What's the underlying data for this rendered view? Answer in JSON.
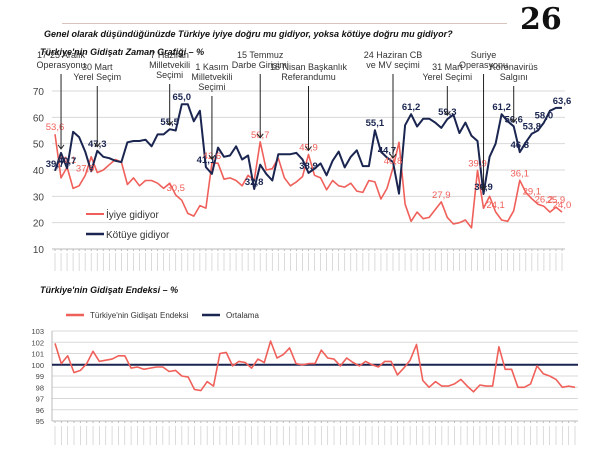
{
  "page": {
    "page_number": "26",
    "question": "Genel olarak düşündüğünüzde Türkiye iyiye doğru mu gidiyor, yoksa kötüye doğru mu gidiyor?",
    "chart1_title": "Türkiye'nin Gidişatı Zaman Grafiği – %",
    "chart2_title": "Türkiye'nin Gidişatı Endeksi – %"
  },
  "colors": {
    "good": "#f0605a",
    "bad": "#1a2550",
    "grid": "#d9d9d9"
  },
  "chart_data": [
    {
      "type": "line",
      "title": "Türkiye'nin Gidişatı Zaman Grafiği – %",
      "ylim": [
        10,
        70
      ],
      "yticks": [
        10,
        20,
        30,
        40,
        50,
        60,
        70
      ],
      "grid": true,
      "legend_position": "bottom-left",
      "x_range": [
        "Aralık'13",
        "Ekim'20"
      ],
      "series": [
        {
          "name": "İyiye gidiyor",
          "values": [
            53.6,
            37,
            41.1,
            33,
            34,
            37.9,
            45,
            39,
            40,
            42,
            44,
            43,
            34.5,
            37,
            34,
            36,
            36,
            35,
            33,
            35,
            30.5,
            28.5,
            23.5,
            22.5,
            26.5,
            25.5,
            42.6,
            42.6,
            36.5,
            37,
            36,
            34,
            38,
            36,
            50.7,
            40,
            40.5,
            44.5,
            37,
            34,
            35.5,
            37.5,
            45.9,
            38,
            37,
            32.5,
            36,
            34,
            33.5,
            35,
            32,
            31.5,
            36,
            35.5,
            29,
            33,
            40.8,
            50.5,
            27,
            20.5,
            24,
            21.5,
            22,
            25,
            27.9,
            22,
            19.5,
            20,
            21,
            18,
            39.9,
            25.5,
            30,
            24.1,
            21,
            20.5,
            24.5,
            36.1,
            31.5,
            29.1,
            27,
            26.2,
            24,
            25.9,
            24.0
          ]
        },
        {
          "name": "Kötüye gidiyor",
          "values": [
            39.7,
            46.5,
            40.7,
            54.5,
            52.5,
            47,
            39.5,
            47.3,
            45,
            44.5,
            43.5,
            43,
            50.5,
            51,
            51,
            51.5,
            49,
            53.5,
            53.5,
            55.5,
            55,
            65,
            65,
            58.5,
            62.5,
            41.1,
            38.5,
            48.5,
            45,
            45.5,
            49,
            44,
            45.5,
            32.8,
            42,
            38.5,
            36,
            46,
            46,
            46,
            46.5,
            44,
            38.9,
            40.5,
            42.5,
            38,
            43.5,
            47,
            41,
            45,
            47.5,
            41.5,
            41.5,
            55.1,
            47,
            44.7,
            43,
            31,
            57,
            61.2,
            56.5,
            59.5,
            59.5,
            58,
            56,
            59.3,
            61,
            54,
            58,
            53,
            51,
            30.9,
            45,
            50,
            61.2,
            58.5,
            56.6,
            46.8,
            50.5,
            53.8,
            55,
            58.0,
            62.5,
            63.6,
            63.6
          ]
        }
      ],
      "data_labels": {
        "good": [
          {
            "i": 0,
            "v": "53,6"
          },
          {
            "i": 2,
            "v": "41,1"
          },
          {
            "i": 5,
            "v": "37,9"
          },
          {
            "i": 20,
            "v": "30,5"
          },
          {
            "i": 26,
            "v": "42,6"
          },
          {
            "i": 34,
            "v": "50,7"
          },
          {
            "i": 42,
            "v": "45,9"
          },
          {
            "i": 56,
            "v": "40,8"
          },
          {
            "i": 64,
            "v": "27,9"
          },
          {
            "i": 70,
            "v": "39,9"
          },
          {
            "i": 73,
            "v": "24,1"
          },
          {
            "i": 77,
            "v": "36,1"
          },
          {
            "i": 79,
            "v": "29,1"
          },
          {
            "i": 81,
            "v": "26,2"
          },
          {
            "i": 83,
            "v": "25,9"
          },
          {
            "i": 84,
            "v": "24,0"
          }
        ],
        "bad": [
          {
            "i": 0,
            "v": "39,7"
          },
          {
            "i": 2,
            "v": "40,7"
          },
          {
            "i": 7,
            "v": "47,3"
          },
          {
            "i": 19,
            "v": "55,5"
          },
          {
            "i": 21,
            "v": "65,0"
          },
          {
            "i": 25,
            "v": "41,1"
          },
          {
            "i": 33,
            "v": "32,8"
          },
          {
            "i": 42,
            "v": "38,9"
          },
          {
            "i": 53,
            "v": "55,1"
          },
          {
            "i": 55,
            "v": "44,7"
          },
          {
            "i": 59,
            "v": "61,2"
          },
          {
            "i": 65,
            "v": "59,3"
          },
          {
            "i": 71,
            "v": "30,9"
          },
          {
            "i": 74,
            "v": "61,2"
          },
          {
            "i": 76,
            "v": "56,6"
          },
          {
            "i": 77,
            "v": "46,8"
          },
          {
            "i": 79,
            "v": "53,8"
          },
          {
            "i": 81,
            "v": "58,0"
          },
          {
            "i": 84,
            "v": "63,6"
          }
        ]
      },
      "annotations": [
        {
          "text": [
            "17-25 Aralık",
            "Operasyonu"
          ],
          "i": 1
        },
        {
          "text": [
            "30 Mart",
            "Yerel Seçim"
          ],
          "i": 7
        },
        {
          "text": [
            "7 Haziran",
            "Milletvekili",
            "Seçimi"
          ],
          "i": 19
        },
        {
          "text": [
            "1 Kasım",
            "Milletvekili",
            "Seçimi"
          ],
          "i": 26
        },
        {
          "text": [
            "15 Temmuz",
            "Darbe Girişimi"
          ],
          "i": 34
        },
        {
          "text": [
            "16 Nisan Başkanlık",
            "Referandumu"
          ],
          "i": 42
        },
        {
          "text": [
            "24 Haziran CB",
            "ve MV seçimi"
          ],
          "i": 56
        },
        {
          "text": [
            "31 Mart",
            "Yerel Seçimi"
          ],
          "i": 65
        },
        {
          "text": [
            "Suriye",
            "Operasyonu"
          ],
          "i": 71
        },
        {
          "text": [
            "Koronavirüs",
            "Salgını"
          ],
          "i": 76
        }
      ]
    },
    {
      "type": "line",
      "title": "Türkiye'nin Gidişatı Endeksi – %",
      "ylim": [
        95,
        103
      ],
      "yticks": [
        95,
        96,
        97,
        98,
        99,
        100,
        101,
        102,
        103
      ],
      "grid": true,
      "legend_position": "top",
      "x_range": [
        "Aralık'13",
        "Ekim'20"
      ],
      "series": [
        {
          "name": "Türkiye'nin Gidişatı Endeksi",
          "values": [
            101.9,
            100.1,
            100.8,
            99.3,
            99.5,
            100.1,
            101.2,
            100.3,
            100.4,
            100.5,
            100.8,
            100.8,
            99.7,
            99.8,
            99.6,
            99.7,
            99.8,
            99.8,
            99.4,
            99.5,
            99.0,
            98.9,
            97.8,
            97.7,
            98.5,
            98.1,
            101.0,
            101.1,
            99.9,
            100.3,
            100.2,
            99.7,
            100.5,
            100.2,
            102.1,
            100.6,
            100.9,
            101.5,
            100.1,
            100.0,
            100.1,
            100.1,
            101.3,
            100.6,
            100.5,
            99.9,
            100.6,
            100.2,
            99.9,
            100.3,
            100.0,
            99.8,
            100.3,
            100.3,
            99.1,
            99.7,
            100.4,
            101.8,
            98.6,
            98.0,
            98.5,
            98.1,
            98.1,
            98.3,
            98.7,
            98.1,
            97.6,
            98.2,
            98.1,
            98.1,
            101.6,
            99.6,
            99.6,
            98.0,
            98.0,
            98.3,
            99.9,
            99.2,
            99.0,
            98.7,
            98.0,
            98.1,
            98.0
          ]
        },
        {
          "name": "Ortalama",
          "values": [
            100
          ]
        }
      ]
    }
  ],
  "labels": {
    "legend_good": "İyiye gidiyor",
    "legend_bad": "Kötüye gidiyor",
    "legend_index": "Türkiye'nin Gidişatı Endeksi",
    "legend_avg": "Ortalama"
  }
}
